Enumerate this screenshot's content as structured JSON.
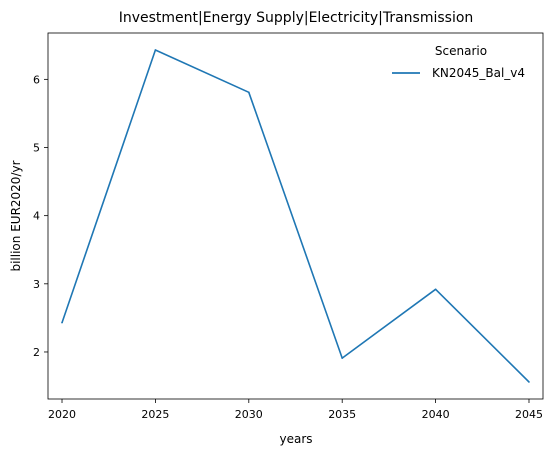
{
  "chart_data": {
    "type": "line",
    "title": "Investment|Energy Supply|Electricity|Transmission",
    "xlabel": "years",
    "ylabel": "billion EUR2020/yr",
    "x": [
      2020,
      2025,
      2030,
      2035,
      2040,
      2045
    ],
    "xticks": [
      2020,
      2025,
      2030,
      2035,
      2040,
      2045
    ],
    "yticks": [
      2,
      3,
      4,
      5,
      6
    ],
    "xlim": [
      2019.25,
      2045.75
    ],
    "ylim": [
      1.31,
      6.68
    ],
    "grid": false,
    "legend": {
      "title": "Scenario",
      "placement": "top-right"
    },
    "series": [
      {
        "name": "KN2045_Bal_v4",
        "color": "#1f77b4",
        "values": [
          2.43,
          6.43,
          5.81,
          1.91,
          2.92,
          1.56
        ]
      }
    ]
  }
}
